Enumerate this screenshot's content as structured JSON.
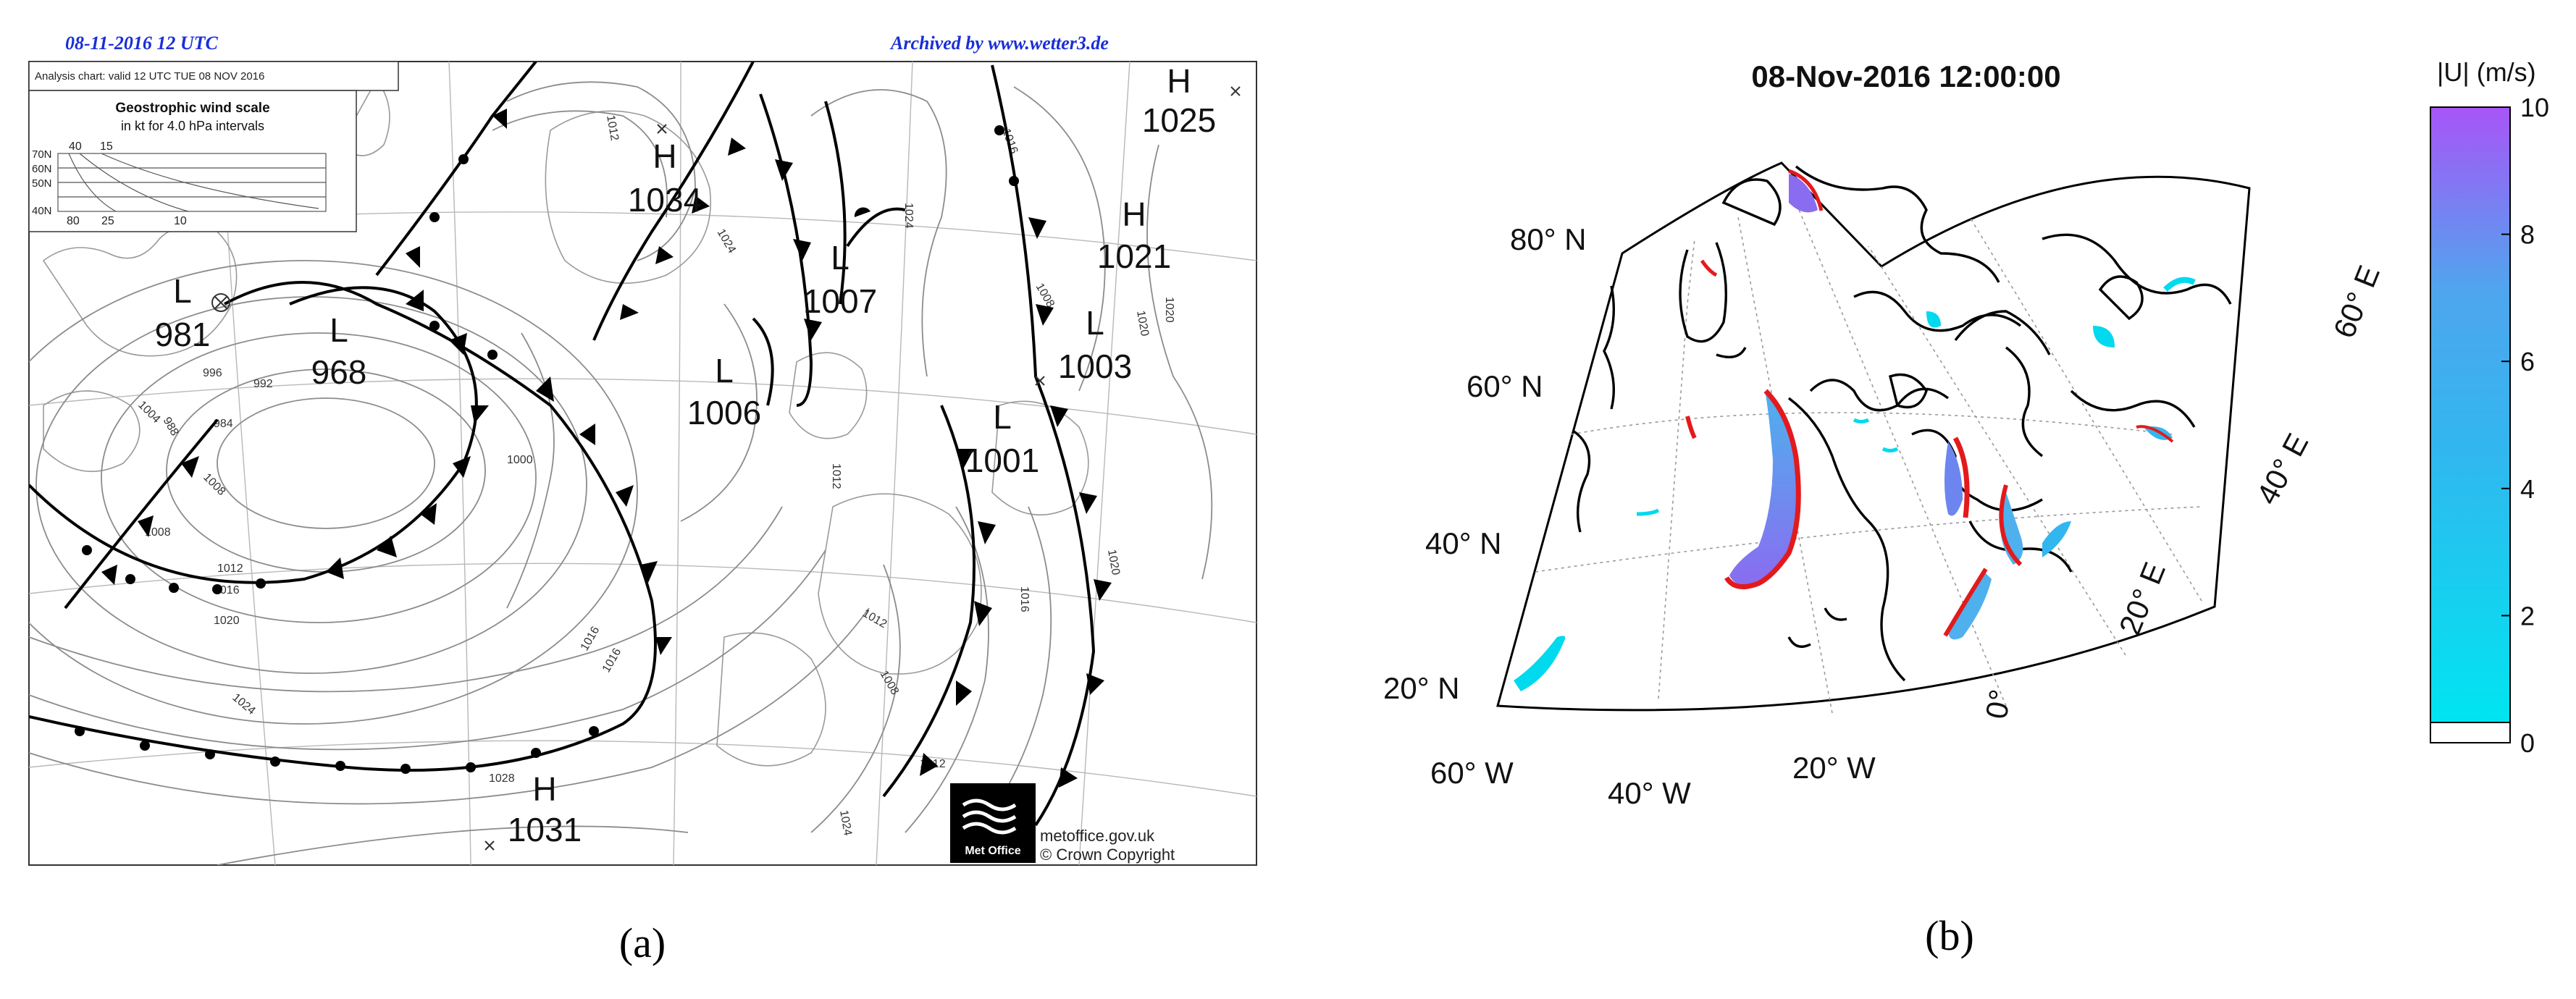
{
  "panel_a": {
    "caption": "(a)",
    "header_date": "08-11-2016  12 UTC",
    "header_archive": "Archived by www.wetter3.de",
    "chart_valid": "Analysis chart: valid 12 UTC TUE 08 NOV 2016",
    "wind_scale": {
      "title": "Geostrophic wind scale",
      "subtitle": "in kt for 4.0 hPa intervals",
      "top_ticks": [
        "40",
        "15"
      ],
      "bottom_ticks": [
        "80",
        "25",
        "10"
      ],
      "lat_labels": [
        "70N",
        "60N",
        "50N",
        "40N"
      ]
    },
    "pressure_centers": [
      {
        "type": "H",
        "value": "1025"
      },
      {
        "type": "H",
        "value": "1034"
      },
      {
        "type": "H",
        "value": "1021"
      },
      {
        "type": "L",
        "value": "1007"
      },
      {
        "type": "L",
        "value": "981"
      },
      {
        "type": "L",
        "value": "968"
      },
      {
        "type": "L",
        "value": "1006"
      },
      {
        "type": "L",
        "value": "1003"
      },
      {
        "type": "L",
        "value": "1001"
      },
      {
        "type": "H",
        "value": "1031"
      }
    ],
    "isobar_labels": [
      "1012",
      "1016",
      "1020",
      "1024",
      "1008",
      "1004",
      "1000",
      "996",
      "992",
      "988",
      "984",
      "1012",
      "1008",
      "1016",
      "1020",
      "1024",
      "1028",
      "1016",
      "1012",
      "1008",
      "1012",
      "1016",
      "1020",
      "1024",
      "1012",
      "1016",
      "1008",
      "1024",
      "1020"
    ],
    "footer": {
      "logo_text": "Met Office",
      "site": "metoffice.gov.uk",
      "copyright": "© Crown Copyright"
    }
  },
  "panel_b": {
    "caption": "(b)",
    "title": "08-Nov-2016 12:00:00",
    "lat_labels": [
      "80° N",
      "60° N",
      "40° N",
      "20° N"
    ],
    "lon_labels": [
      "60° W",
      "40° W",
      "20° W",
      "0°",
      "20° E",
      "40° E",
      "60° E"
    ],
    "colorbar": {
      "label": "|U| (m/s)",
      "ticks": [
        "0",
        "2",
        "4",
        "6",
        "8",
        "10"
      ],
      "min": 0,
      "max": 10,
      "color_low": "#00e5f0",
      "color_mid": "#4fa6ee",
      "color_high": "#a855f7"
    },
    "colors": {
      "front_red": "#e31a1c",
      "coast": "#000000"
    }
  }
}
